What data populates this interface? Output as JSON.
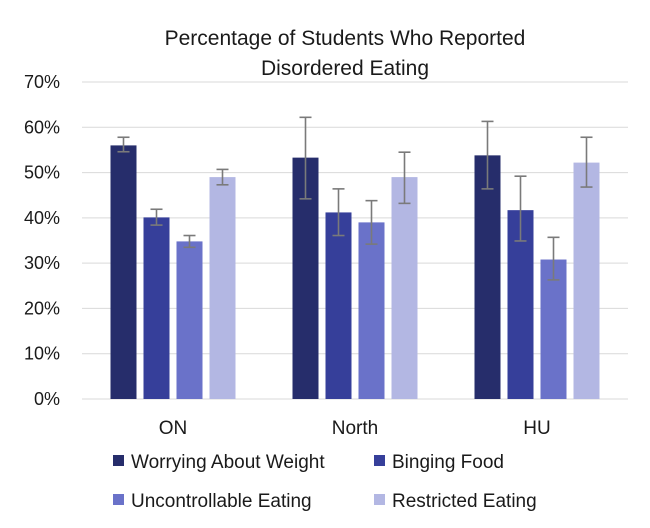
{
  "chart_data": {
    "type": "bar",
    "title_lines": [
      "Percentage of Students Who Reported",
      "Disordered Eating"
    ],
    "categories": [
      "ON",
      "North",
      "HU"
    ],
    "ylim": [
      0,
      70
    ],
    "yticks": [
      "0%",
      "10%",
      "20%",
      "30%",
      "40%",
      "50%",
      "60%",
      "70%"
    ],
    "grid": true,
    "legend_position": "bottom",
    "series": [
      {
        "name": "Worrying About Weight",
        "color": "#262d6b",
        "values": [
          56,
          53.3,
          53.8
        ],
        "error_low": [
          54.6,
          44.2,
          46.4
        ],
        "error_high": [
          57.8,
          62.2,
          61.3
        ]
      },
      {
        "name": "Binging Food",
        "color": "#363f9a",
        "values": [
          40.1,
          41.2,
          41.7
        ],
        "error_low": [
          38.4,
          36.1,
          34.9
        ],
        "error_high": [
          41.9,
          46.4,
          49.2
        ]
      },
      {
        "name": "Uncontrollable Eating",
        "color": "#6a72c9",
        "values": [
          34.8,
          39.0,
          30.8
        ],
        "error_low": [
          33.5,
          34.2,
          26.3
        ],
        "error_high": [
          36.1,
          43.8,
          35.7
        ]
      },
      {
        "name": "Restricted Eating",
        "color": "#b3b7e3",
        "values": [
          49.0,
          49.0,
          52.2
        ],
        "error_low": [
          47.3,
          43.2,
          46.8
        ],
        "error_high": [
          50.7,
          54.5,
          57.8
        ]
      }
    ]
  }
}
